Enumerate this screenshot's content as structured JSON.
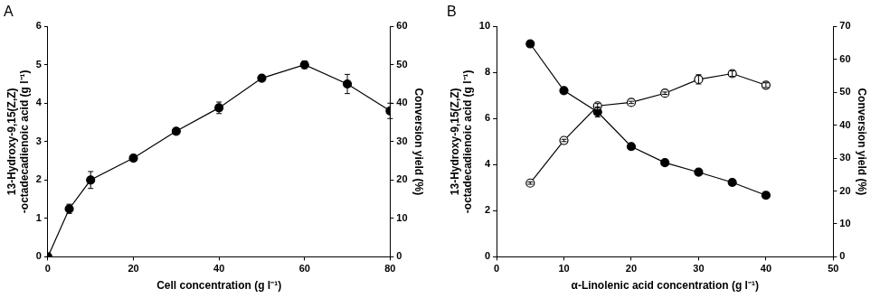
{
  "chart_data": [
    {
      "type": "line",
      "title": "A",
      "x": [
        0,
        5,
        10,
        20,
        30,
        40,
        50,
        60,
        70,
        80
      ],
      "xlabel": "Cell concentration (g l⁻¹)",
      "ylabel": [
        "13-Hydroxy-9,15(Z,Z)",
        "-octadecadienoic acid (g l⁻¹)"
      ],
      "y2label": "Conversion yield (%)",
      "xlim": [
        0,
        80
      ],
      "xticks": [
        0,
        20,
        40,
        60,
        80
      ],
      "ylim": [
        0,
        6
      ],
      "yticks": [
        0,
        1,
        2,
        3,
        4,
        5,
        6
      ],
      "y2lim": [
        0,
        60
      ],
      "y2ticks": [
        0,
        10,
        20,
        30,
        40,
        50,
        60
      ],
      "grid": false,
      "series": [
        {
          "color": "#000000",
          "marker": "circle",
          "line_style": "solid",
          "values": [
            0,
            1.25,
            2.0,
            2.57,
            3.27,
            3.88,
            4.65,
            5.0,
            4.5,
            3.8
          ],
          "errors": [
            0,
            0.12,
            0.22,
            0.05,
            0.05,
            0.15,
            0.06,
            0.1,
            0.25,
            0.2
          ]
        }
      ]
    },
    {
      "type": "line",
      "title": "B",
      "x": [
        5,
        10,
        15,
        20,
        25,
        30,
        35,
        40
      ],
      "xlabel": "α-Linolenic acid concentration (g l⁻¹)",
      "ylabel": [
        "13-Hydroxy-9,15(Z,Z)",
        "-octadecadienoic acid (g l⁻¹)"
      ],
      "y2label": "Conversion yield (%)",
      "xlim": [
        0,
        50
      ],
      "xticks": [
        0,
        10,
        20,
        30,
        40,
        50
      ],
      "ylim": [
        0,
        10
      ],
      "yticks": [
        0,
        2,
        4,
        6,
        8,
        10
      ],
      "y2lim": [
        0,
        70
      ],
      "y2ticks": [
        0,
        10,
        20,
        30,
        40,
        50,
        60,
        70
      ],
      "grid": false,
      "series": [
        {
          "color": "#000000",
          "marker": "open_circle",
          "line_style": "solid",
          "values": [
            3.2,
            5.05,
            6.55,
            6.7,
            7.1,
            7.7,
            7.95,
            7.45
          ],
          "errors": [
            0.05,
            0.05,
            0.1,
            0.05,
            0.05,
            0.2,
            0.12,
            0.1
          ]
        },
        {
          "color": "#000000",
          "marker": "circle",
          "line_style": "solid",
          "axis": "y2",
          "values": [
            64.7,
            50.5,
            44.0,
            33.5,
            28.6,
            25.7,
            22.6,
            18.7
          ],
          "errors": [
            0.5,
            0.5,
            1.5,
            0.5,
            0.5,
            0.5,
            0.5,
            0.5
          ]
        }
      ]
    }
  ]
}
